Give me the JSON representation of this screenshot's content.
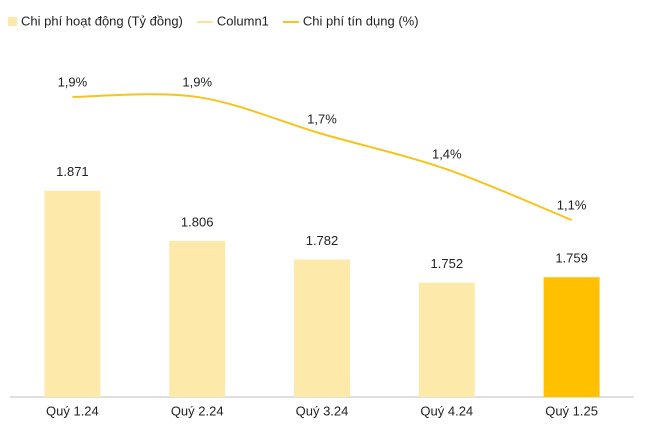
{
  "chart_data": {
    "type": "bar-line",
    "categories": [
      "Quý 1.24",
      "Quý 2.24",
      "Quý 3.24",
      "Quý 4.24",
      "Quý 1.25"
    ],
    "series": [
      {
        "name": "Chi phí hoạt động (Tỷ đồng)",
        "type": "bar",
        "color": "#fde9a9",
        "highlight_color": "#ffc000",
        "values": [
          1871,
          1806,
          1782,
          1752,
          1759
        ],
        "value_labels": [
          "1.871",
          "1.806",
          "1.782",
          "1.752",
          "1.759"
        ]
      },
      {
        "name": "Column1",
        "type": "line",
        "color": "#fbe39a"
      },
      {
        "name": "Chi phí tín dụng (%)",
        "type": "line",
        "axis": "y2",
        "color": "#f7c31c",
        "values": [
          1.9,
          1.9,
          1.66,
          1.43,
          1.1
        ],
        "value_labels": [
          "1,9%",
          "1,9%",
          "1,7%",
          "1,4%",
          "1,1%"
        ]
      }
    ],
    "ylim": [
      1604,
      2066
    ],
    "y2lim": [
      -0.05,
      2.27
    ],
    "legend": "top-left"
  }
}
